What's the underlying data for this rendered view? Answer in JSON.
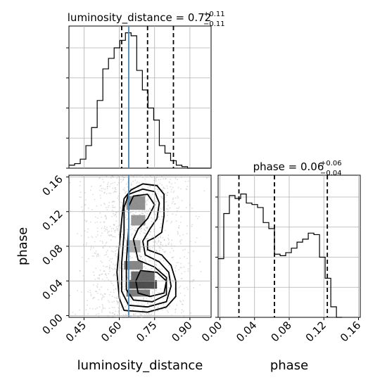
{
  "chart_data": [
    {
      "type": "histogram",
      "panel": "luminosity_distance-1d",
      "title": {
        "prefix": "luminosity_distance = ",
        "median": "0.72",
        "plus": "+0.11",
        "minus": "−0.11"
      },
      "x_range": [
        0.386,
        0.99
      ],
      "bin_width": 0.024,
      "bin_edges_start": 0.386,
      "counts": [
        2,
        3,
        6,
        15,
        27,
        45,
        66,
        73,
        80,
        85,
        90,
        88,
        65,
        52,
        40,
        32,
        15,
        10,
        5,
        2,
        1,
        0,
        0,
        0,
        0
      ],
      "quantiles": [
        0.61,
        0.72,
        0.83
      ],
      "truth": 0.64,
      "y_max": 90,
      "grid": true
    },
    {
      "type": "histogram",
      "panel": "phase-1d",
      "title": {
        "prefix": "phase = ",
        "median": "0.06",
        "plus": "+0.06",
        "minus": "−0.04"
      },
      "x_range": [
        -0.002,
        0.162
      ],
      "bin_width": 0.0065,
      "bin_edges_start": -0.002,
      "counts": [
        39,
        69,
        81,
        79,
        82,
        76,
        75,
        73,
        63,
        59,
        42,
        41,
        43,
        46,
        50,
        52,
        56,
        55,
        40,
        26,
        7,
        0
      ],
      "quantiles": [
        0.022,
        0.063,
        0.124
      ],
      "x_ticks": [
        "0.00",
        "0.04",
        "0.08",
        "0.12",
        "0.16"
      ],
      "x_tick_values": [
        0.0,
        0.04,
        0.08,
        0.12,
        0.16
      ],
      "xlabel": "phase",
      "y_max": 90,
      "grid": true
    },
    {
      "type": "contour",
      "panel": "luminosity_distance-vs-phase-2d",
      "x_range": [
        0.386,
        0.99
      ],
      "y_range": [
        -0.002,
        0.162
      ],
      "truth_x": 0.64,
      "xlabel": "luminosity_distance",
      "ylabel": "phase",
      "x_ticks": [
        "0.45",
        "0.60",
        "0.75",
        "0.90"
      ],
      "x_tick_values": [
        0.45,
        0.6,
        0.75,
        0.9
      ],
      "y_ticks": [
        "0.00",
        "0.04",
        "0.08",
        "0.12",
        "0.16"
      ],
      "y_tick_values": [
        0.0,
        0.04,
        0.08,
        0.12,
        0.16
      ],
      "density_cells": [
        {
          "x": 0.7,
          "y": 0.036,
          "dx": 0.12,
          "dy": 0.01,
          "level": 0.85
        },
        {
          "x": 0.7,
          "y": 0.046,
          "dx": 0.1,
          "dy": 0.01,
          "level": 0.7
        },
        {
          "x": 0.68,
          "y": 0.026,
          "dx": 0.1,
          "dy": 0.008,
          "level": 0.6
        },
        {
          "x": 0.66,
          "y": 0.058,
          "dx": 0.08,
          "dy": 0.01,
          "level": 0.55
        },
        {
          "x": 0.67,
          "y": 0.13,
          "dx": 0.08,
          "dy": 0.016,
          "level": 0.5
        },
        {
          "x": 0.68,
          "y": 0.11,
          "dx": 0.06,
          "dy": 0.012,
          "level": 0.45
        },
        {
          "x": 0.66,
          "y": 0.08,
          "dx": 0.06,
          "dy": 0.014,
          "level": 0.35
        }
      ],
      "contours": [
        {
          "level": 1,
          "points": [
            [
              0.65,
              0.145
            ],
            [
              0.7,
              0.152
            ],
            [
              0.76,
              0.15
            ],
            [
              0.79,
              0.14
            ],
            [
              0.79,
              0.115
            ],
            [
              0.78,
              0.096
            ],
            [
              0.75,
              0.09
            ],
            [
              0.72,
              0.086
            ],
            [
              0.72,
              0.076
            ],
            [
              0.78,
              0.07
            ],
            [
              0.82,
              0.058
            ],
            [
              0.84,
              0.04
            ],
            [
              0.84,
              0.022
            ],
            [
              0.8,
              0.01
            ],
            [
              0.72,
              0.004
            ],
            [
              0.62,
              0.006
            ],
            [
              0.6,
              0.02
            ],
            [
              0.59,
              0.05
            ],
            [
              0.6,
              0.08
            ],
            [
              0.61,
              0.11
            ],
            [
              0.62,
              0.135
            ]
          ]
        },
        {
          "level": 2,
          "points": [
            [
              0.64,
              0.14
            ],
            [
              0.7,
              0.146
            ],
            [
              0.75,
              0.143
            ],
            [
              0.77,
              0.13
            ],
            [
              0.76,
              0.112
            ],
            [
              0.73,
              0.1
            ],
            [
              0.7,
              0.086
            ],
            [
              0.71,
              0.07
            ],
            [
              0.77,
              0.062
            ],
            [
              0.81,
              0.05
            ],
            [
              0.82,
              0.034
            ],
            [
              0.8,
              0.016
            ],
            [
              0.72,
              0.01
            ],
            [
              0.64,
              0.012
            ],
            [
              0.61,
              0.028
            ],
            [
              0.61,
              0.06
            ],
            [
              0.62,
              0.095
            ],
            [
              0.62,
              0.125
            ]
          ]
        },
        {
          "level": 3,
          "points": [
            [
              0.66,
              0.138
            ],
            [
              0.72,
              0.14
            ],
            [
              0.75,
              0.128
            ],
            [
              0.72,
              0.112
            ],
            [
              0.68,
              0.1
            ],
            [
              0.66,
              0.088
            ],
            [
              0.68,
              0.064
            ],
            [
              0.75,
              0.056
            ],
            [
              0.8,
              0.044
            ],
            [
              0.8,
              0.024
            ],
            [
              0.74,
              0.016
            ],
            [
              0.66,
              0.018
            ],
            [
              0.63,
              0.03
            ],
            [
              0.63,
              0.062
            ],
            [
              0.64,
              0.1
            ],
            [
              0.64,
              0.126
            ]
          ]
        },
        {
          "level": 4,
          "points": [
            [
              0.69,
              0.052
            ],
            [
              0.76,
              0.05
            ],
            [
              0.8,
              0.04
            ],
            [
              0.79,
              0.026
            ],
            [
              0.73,
              0.022
            ],
            [
              0.68,
              0.026
            ],
            [
              0.67,
              0.04
            ]
          ]
        }
      ]
    }
  ]
}
